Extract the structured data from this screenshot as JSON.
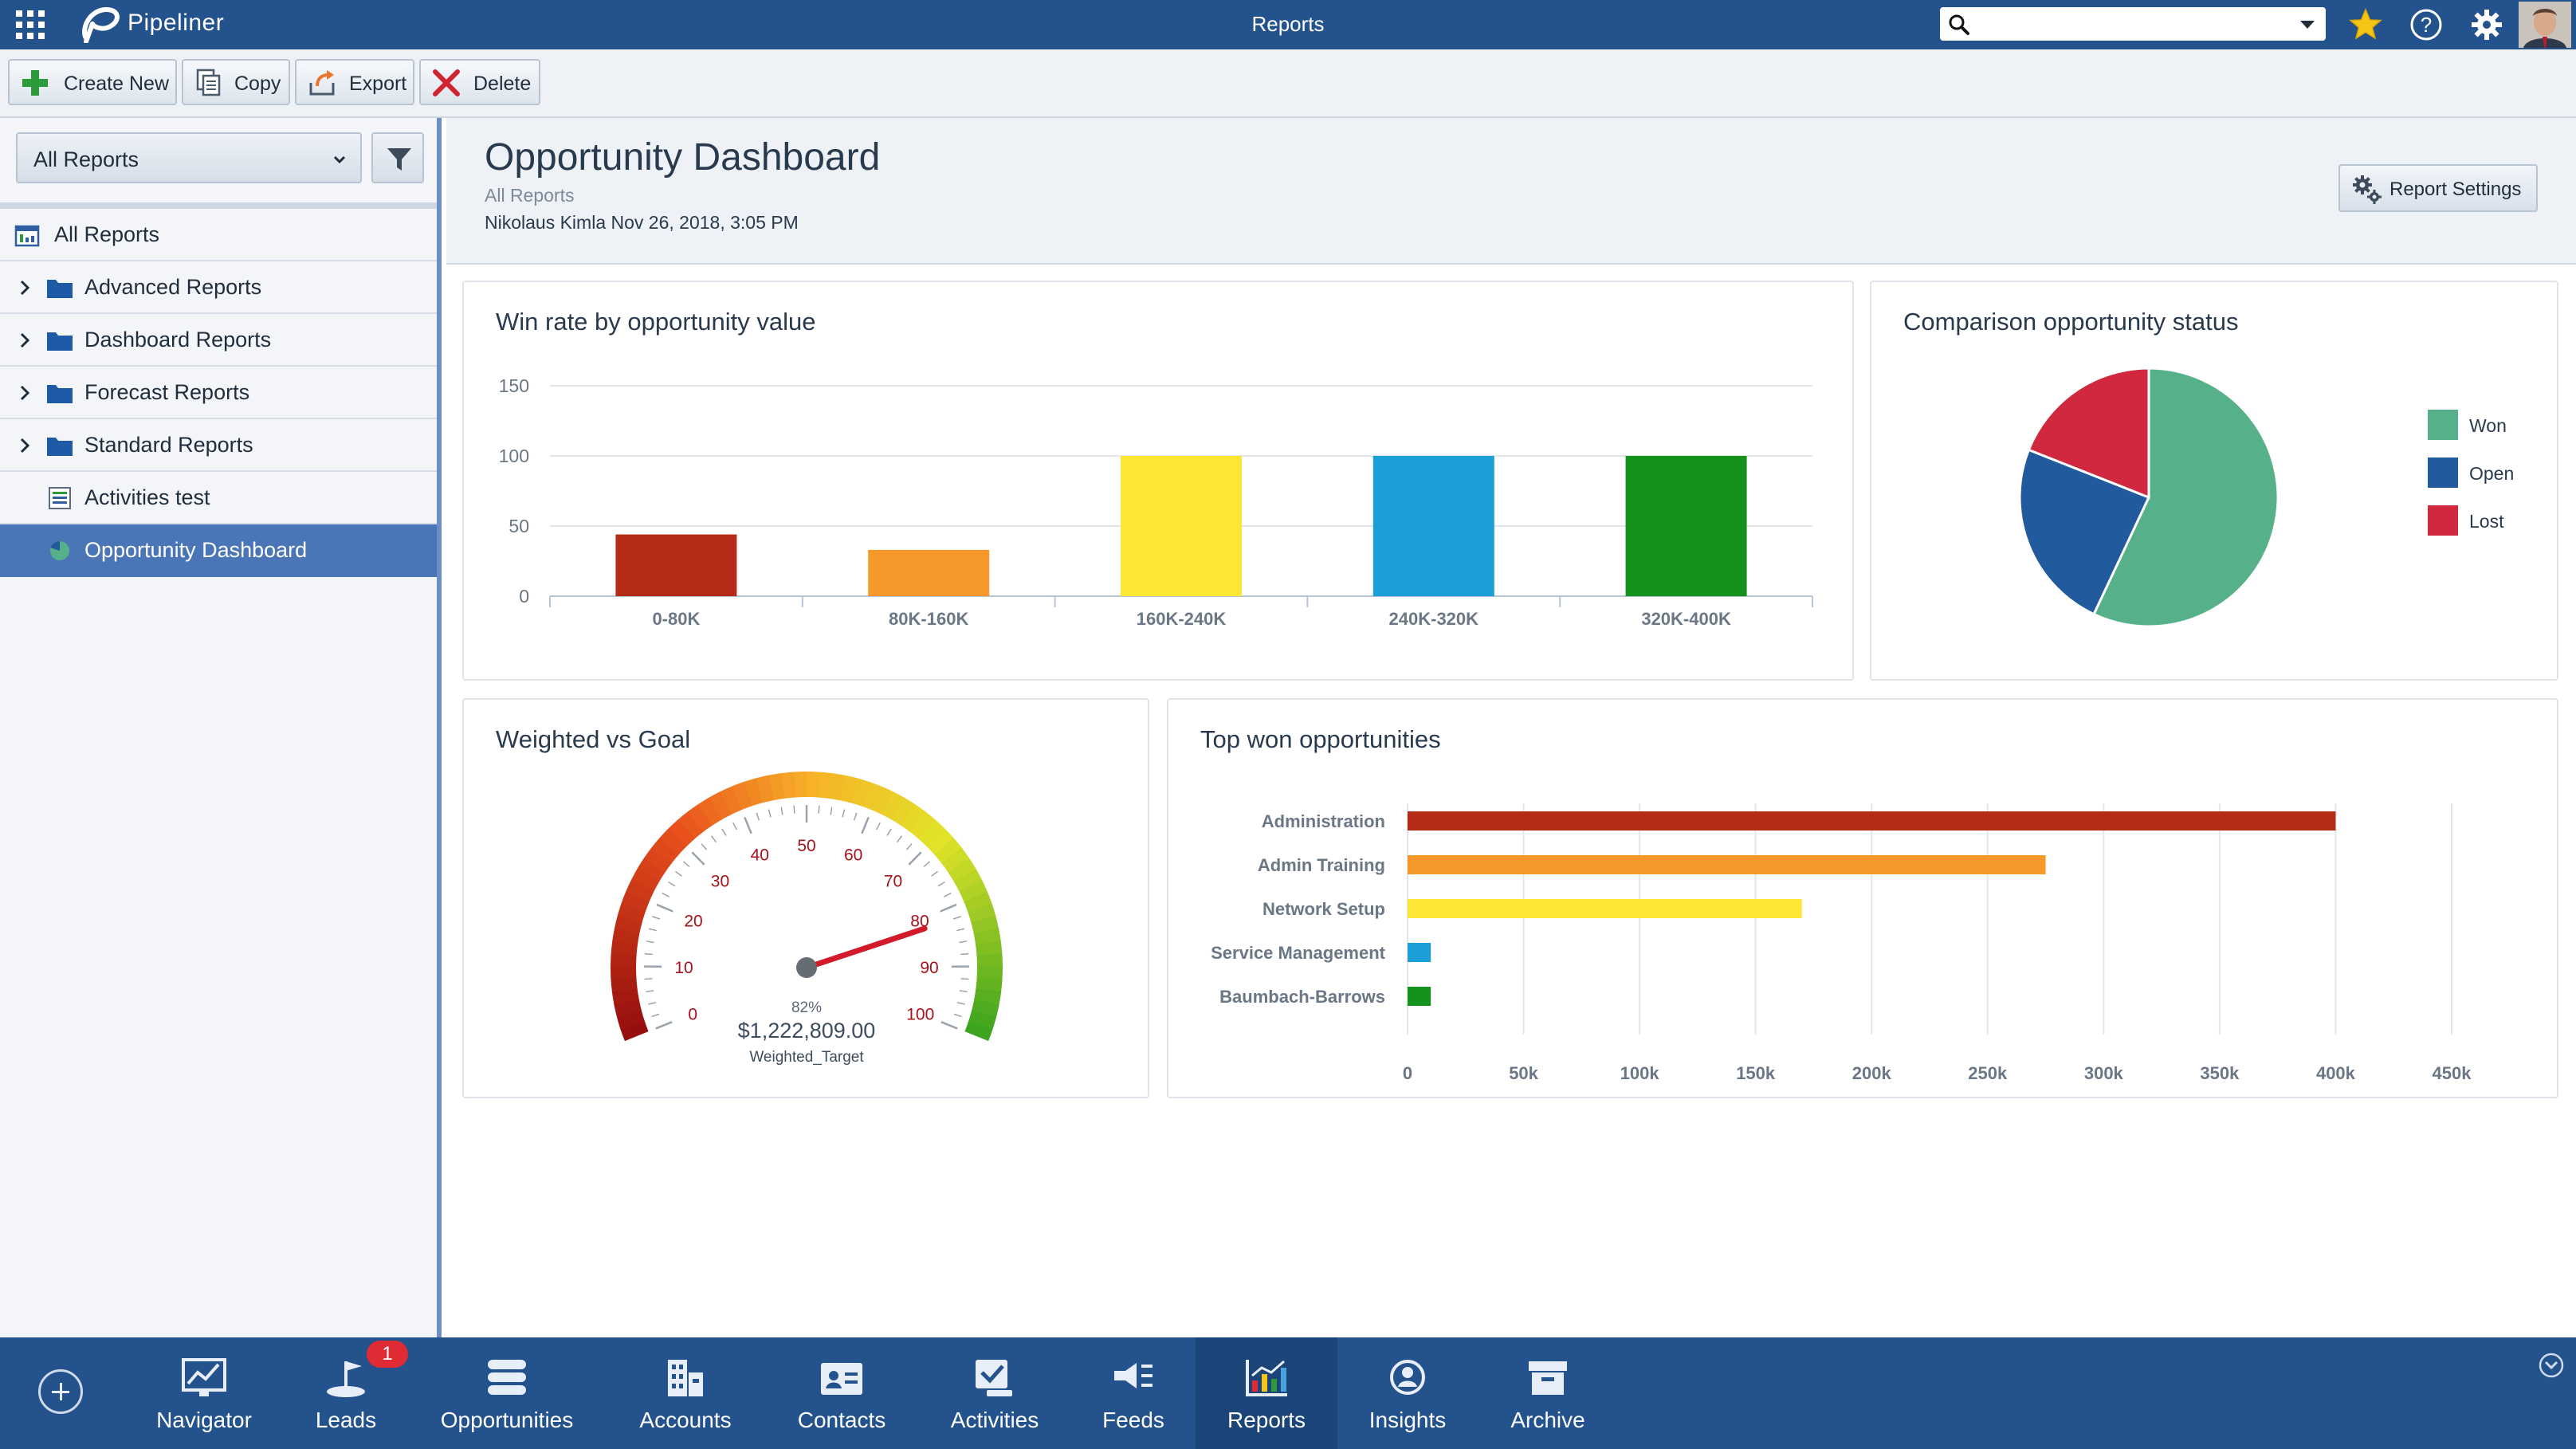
{
  "app": {
    "name": "Pipeliner",
    "window_title": "Reports"
  },
  "header": {
    "search": {
      "value": "",
      "placeholder": ""
    }
  },
  "toolbar": {
    "create_new": "Create New",
    "copy": "Copy",
    "export": "Export",
    "delete": "Delete"
  },
  "sidebar": {
    "filter_select": "All Reports",
    "items": [
      {
        "label": "All Reports",
        "icon": "reports-icon"
      },
      {
        "label": "Advanced Reports",
        "icon": "folder-icon"
      },
      {
        "label": "Dashboard Reports",
        "icon": "folder-icon"
      },
      {
        "label": "Forecast Reports",
        "icon": "folder-icon"
      },
      {
        "label": "Standard Reports",
        "icon": "folder-icon"
      },
      {
        "label": "Activities test",
        "icon": "table-report-icon"
      },
      {
        "label": "Opportunity Dashboard",
        "icon": "pie-report-icon",
        "selected": true
      }
    ]
  },
  "page": {
    "title": "Opportunity Dashboard",
    "breadcrumb": "All Reports",
    "author": "Nikolaus Kimla",
    "date": "Nov 26, 2018, 3:05 PM",
    "report_settings": "Report Settings"
  },
  "colors": {
    "brand": "#23528d",
    "won": "#56b08a",
    "open": "#225b9d",
    "lost": "#d0293f"
  },
  "chart_data": [
    {
      "type": "bar",
      "title": "Win rate by opportunity value",
      "categories": [
        "0-80K",
        "80K-160K",
        "160K-240K",
        "240K-320K",
        "320K-400K"
      ],
      "values": [
        44,
        33,
        100,
        100,
        100
      ],
      "colors": [
        "#b42b16",
        "#f7992a",
        "#fde735",
        "#1a9fd8",
        "#15921b"
      ],
      "yticks": [
        "0",
        "50",
        "100",
        "150"
      ],
      "ylim": [
        0,
        150
      ],
      "grid": true,
      "xlabel": "",
      "ylabel": ""
    },
    {
      "type": "pie",
      "title": "Comparison opportunity status",
      "labels": [
        "Won",
        "Open",
        "Lost"
      ],
      "values": [
        57,
        24,
        19
      ],
      "colors": [
        "#56b08a",
        "#225b9d",
        "#d0293f"
      ],
      "legend": "right"
    },
    {
      "type": "gauge",
      "title": "Weighted vs Goal",
      "value": 82,
      "range": [
        0,
        100
      ],
      "ticks": [
        "0",
        "10",
        "20",
        "30",
        "40",
        "50",
        "60",
        "70",
        "80",
        "90",
        "100"
      ],
      "percent_label": "82%",
      "amount_label": "$1,222,809.00",
      "caption": "Weighted_Target"
    },
    {
      "type": "bar",
      "orientation": "horizontal",
      "title": "Top won opportunities",
      "categories": [
        "Administration",
        "Admin Training",
        "Network Setup",
        "Service Management",
        "Baumbach-Barrows"
      ],
      "values": [
        400000,
        275000,
        170000,
        10000,
        10000
      ],
      "colors": [
        "#b42b16",
        "#f7992a",
        "#fde735",
        "#1a9fd8",
        "#15921b"
      ],
      "xticks": [
        "0",
        "50k",
        "100k",
        "150k",
        "200k",
        "250k",
        "300k",
        "350k",
        "400k",
        "450k"
      ],
      "xlim": [
        0,
        450000
      ],
      "grid": true
    }
  ],
  "bottom_nav": {
    "items": [
      {
        "label": "Navigator"
      },
      {
        "label": "Leads",
        "badge": "1"
      },
      {
        "label": "Opportunities"
      },
      {
        "label": "Accounts"
      },
      {
        "label": "Contacts"
      },
      {
        "label": "Activities"
      },
      {
        "label": "Feeds"
      },
      {
        "label": "Reports",
        "active": true
      },
      {
        "label": "Insights"
      },
      {
        "label": "Archive"
      }
    ]
  }
}
